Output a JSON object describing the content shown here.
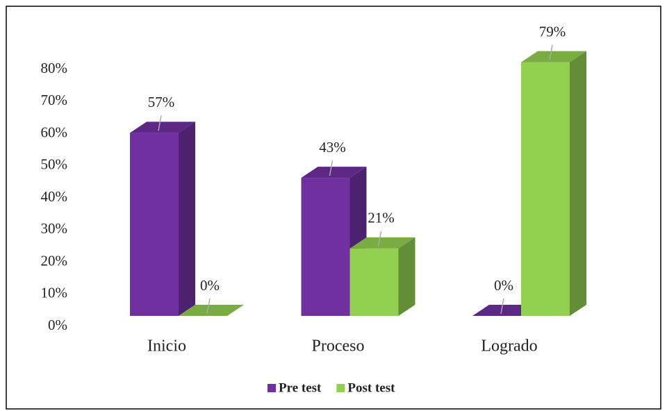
{
  "chart_data": {
    "type": "bar3d",
    "categories": [
      "Inicio",
      "Proceso",
      "Logrado"
    ],
    "series": [
      {
        "name": "Pre test",
        "color": "#7030a0",
        "values": [
          57,
          43,
          0
        ],
        "value_labels": [
          "57%",
          "43%",
          "0%"
        ]
      },
      {
        "name": "Post test",
        "color": "#92d050",
        "values": [
          0,
          21,
          79
        ],
        "value_labels": [
          "0%",
          "21%",
          "79%"
        ]
      }
    ],
    "ylim": [
      0,
      80
    ],
    "yticks": [
      {
        "value": 0,
        "label": "0%"
      },
      {
        "value": 10,
        "label": "10%"
      },
      {
        "value": 20,
        "label": "20%"
      },
      {
        "value": 30,
        "label": "30%"
      },
      {
        "value": 40,
        "label": "40%"
      },
      {
        "value": 50,
        "label": "50%"
      },
      {
        "value": 60,
        "label": "60%"
      },
      {
        "value": 70,
        "label": "70%"
      },
      {
        "value": 80,
        "label": "80%"
      }
    ],
    "legend": "bottom"
  }
}
